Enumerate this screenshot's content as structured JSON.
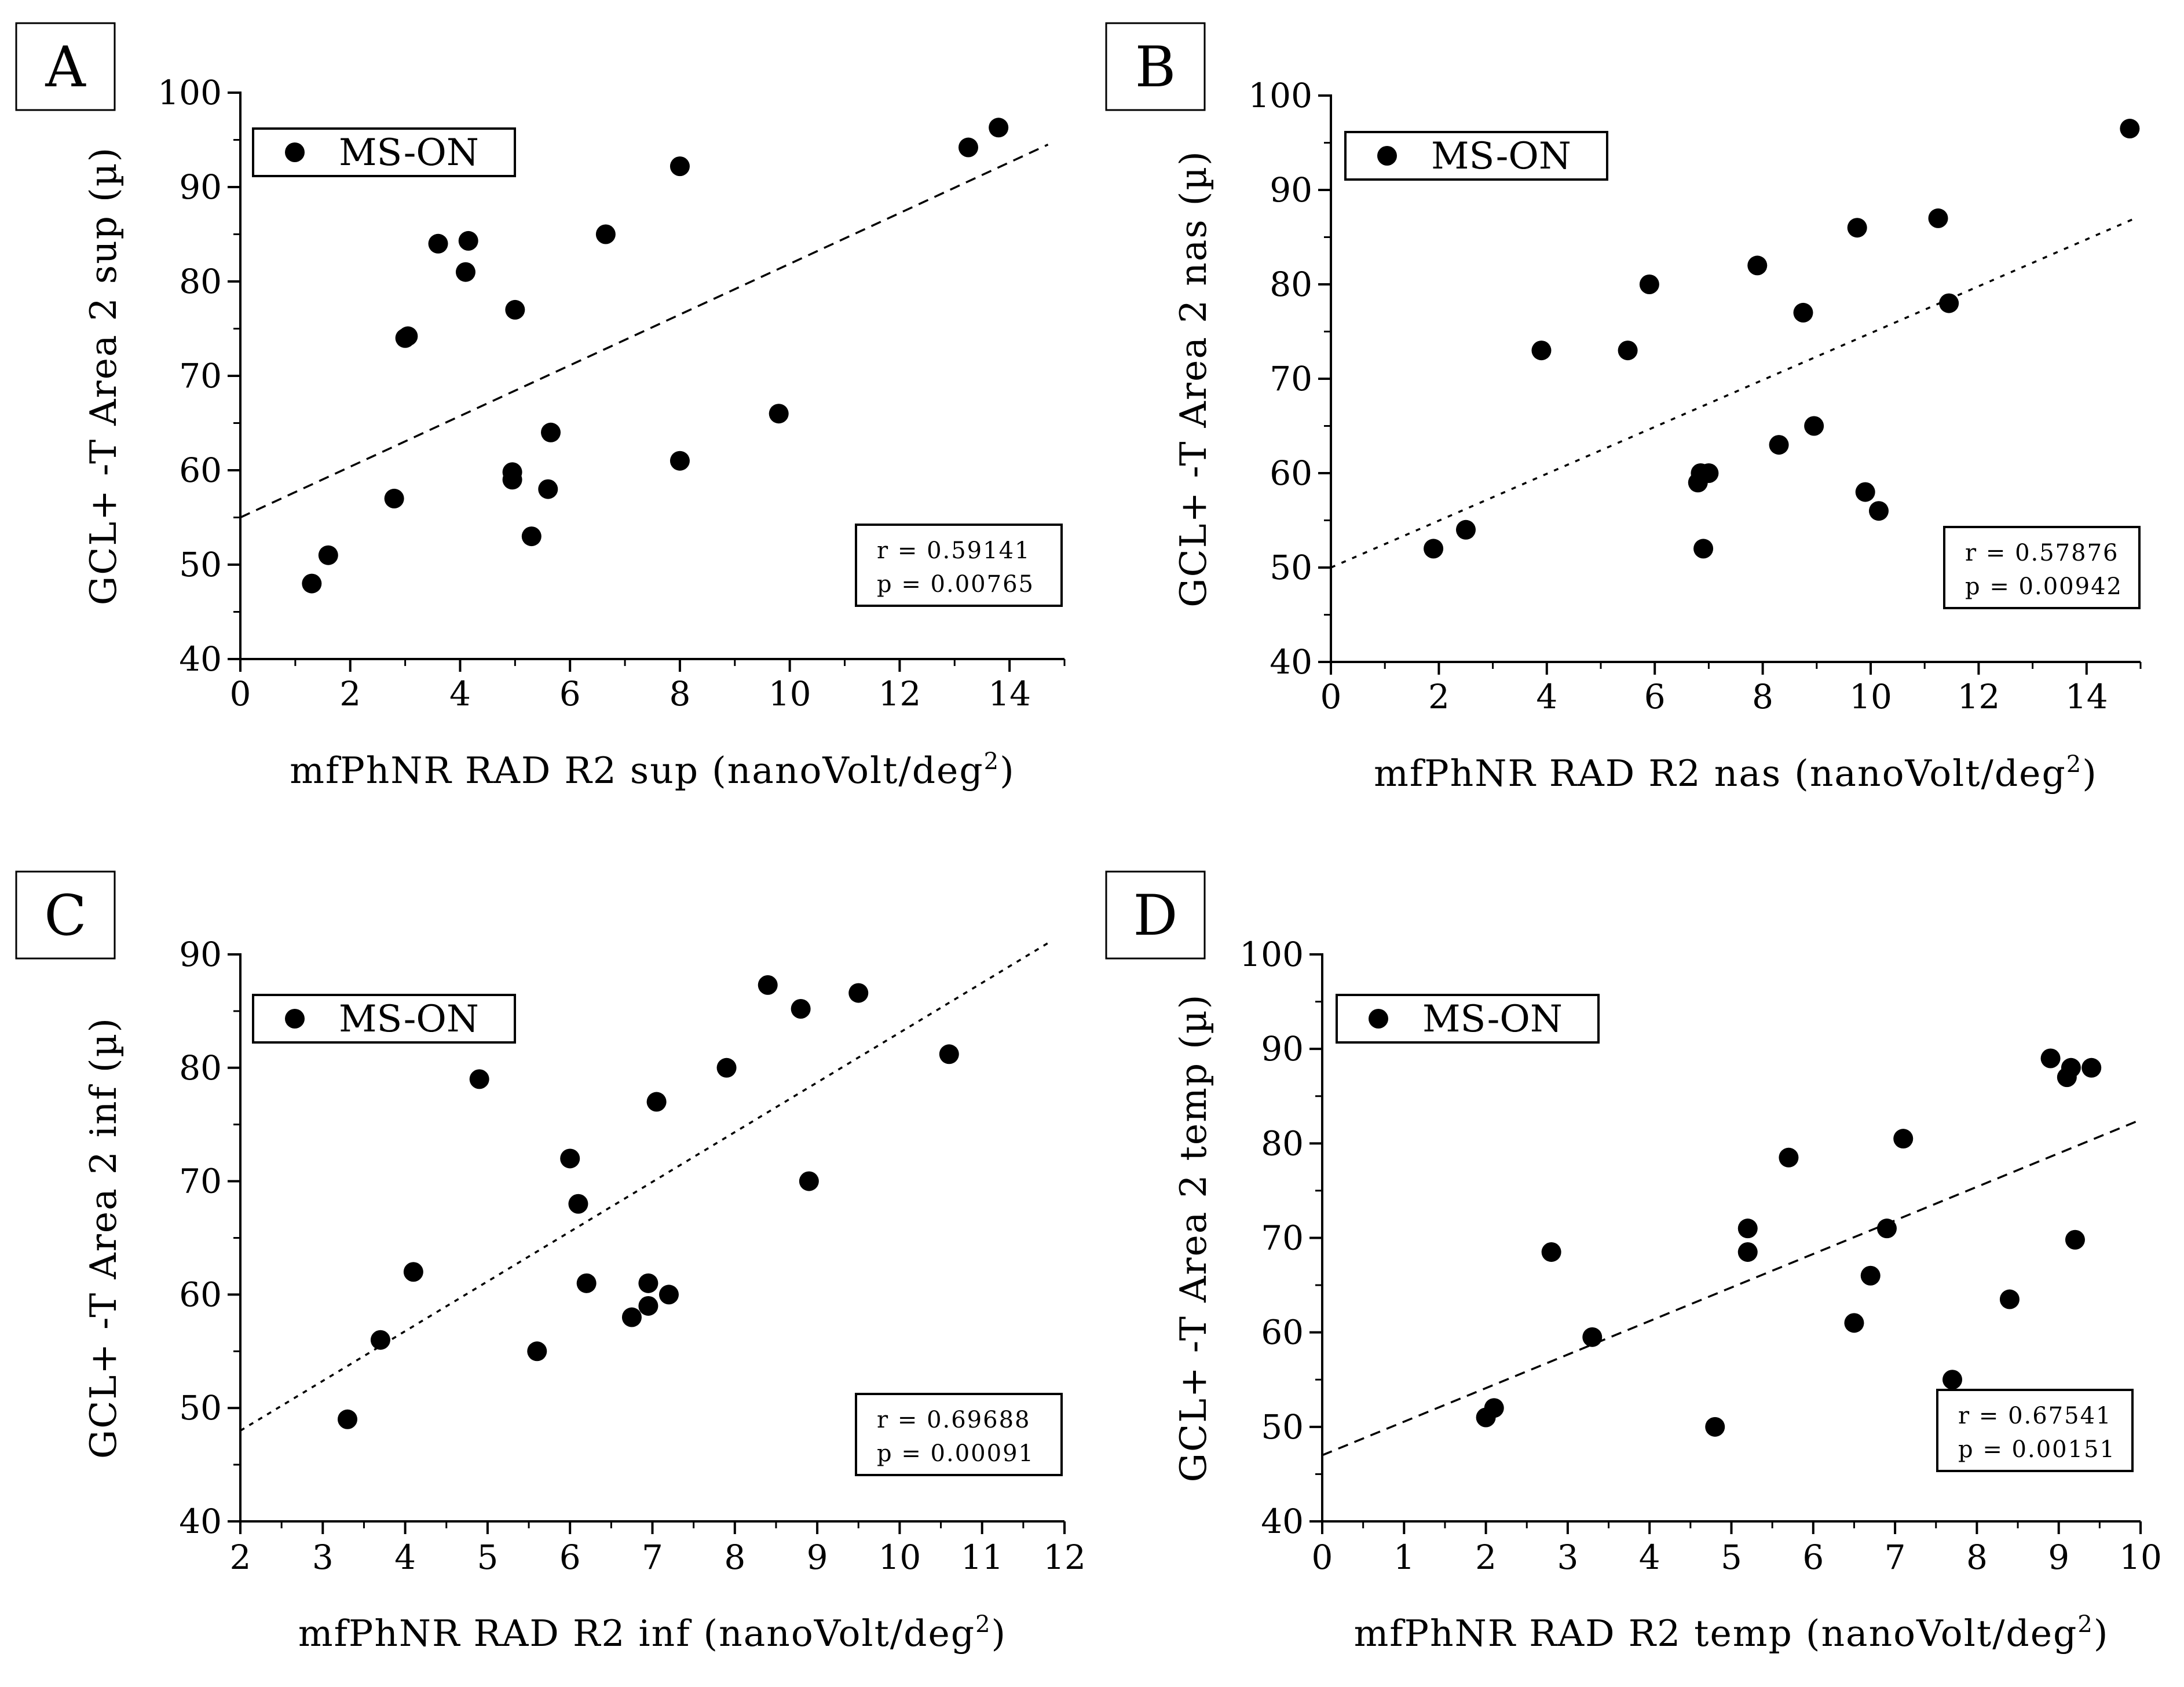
{
  "chart_data": [
    {
      "panel": "A",
      "type": "scatter",
      "legend": "MS-ON",
      "xlabel": "mfPhNR RAD R2 sup (nanoVolt/deg",
      "xlabel_sup": "2",
      "xlabel_end": ")",
      "ylabel": "GCL+ -T Area 2 sup (µ)",
      "xlim": [
        0,
        15
      ],
      "ylim": [
        40,
        100
      ],
      "xticks": [
        0,
        2,
        4,
        6,
        8,
        10,
        12,
        14
      ],
      "yticks": [
        40,
        50,
        60,
        70,
        80,
        90,
        100
      ],
      "r_text": "r = 0.59141",
      "p_text": "p = 0.00765",
      "fit": {
        "x": [
          0,
          14.7
        ],
        "y": [
          55,
          94.5
        ]
      },
      "points": [
        [
          1.3,
          48
        ],
        [
          1.6,
          51
        ],
        [
          2.8,
          57
        ],
        [
          3.0,
          74
        ],
        [
          3.05,
          74.2
        ],
        [
          3.6,
          84
        ],
        [
          4.1,
          81
        ],
        [
          4.15,
          84.3
        ],
        [
          4.95,
          59.8
        ],
        [
          4.95,
          59
        ],
        [
          5.0,
          77
        ],
        [
          5.3,
          53
        ],
        [
          5.6,
          58
        ],
        [
          5.65,
          64
        ],
        [
          6.65,
          85
        ],
        [
          8.0,
          61
        ],
        [
          8.0,
          92.2
        ],
        [
          9.8,
          66
        ],
        [
          13.25,
          94.2
        ],
        [
          13.8,
          96.3
        ]
      ]
    },
    {
      "panel": "B",
      "type": "scatter",
      "legend": "MS-ON",
      "xlabel": "mfPhNR RAD R2 nas (nanoVolt/deg",
      "xlabel_sup": "2",
      "xlabel_end": ")",
      "ylabel": "GCL+ -T Area 2 nas (µ)",
      "xlim": [
        0,
        15
      ],
      "ylim": [
        40,
        100
      ],
      "xticks": [
        0,
        2,
        4,
        6,
        8,
        10,
        12,
        14
      ],
      "yticks": [
        40,
        50,
        60,
        70,
        80,
        90,
        100
      ],
      "r_text": "r = 0.57876",
      "p_text": "p = 0.00942",
      "fit": {
        "x": [
          0,
          14.9
        ],
        "y": [
          50,
          87
        ]
      },
      "points": [
        [
          1.9,
          52
        ],
        [
          2.5,
          54
        ],
        [
          3.9,
          73
        ],
        [
          5.5,
          73
        ],
        [
          5.9,
          80
        ],
        [
          6.8,
          59
        ],
        [
          6.85,
          60
        ],
        [
          6.9,
          52
        ],
        [
          7.0,
          60
        ],
        [
          7.9,
          82
        ],
        [
          8.3,
          63
        ],
        [
          8.75,
          77
        ],
        [
          8.95,
          65
        ],
        [
          9.75,
          86
        ],
        [
          9.9,
          58
        ],
        [
          10.15,
          56
        ],
        [
          11.25,
          87
        ],
        [
          11.45,
          78
        ],
        [
          14.8,
          96.5
        ]
      ]
    },
    {
      "panel": "C",
      "type": "scatter",
      "legend": "MS-ON",
      "xlabel": "mfPhNR RAD R2 inf (nanoVolt/deg",
      "xlabel_sup": "2",
      "xlabel_end": ")",
      "ylabel": "GCL+ -T Area 2 inf (µ)",
      "xlim": [
        2,
        12
      ],
      "ylim": [
        40,
        90
      ],
      "xticks": [
        2,
        3,
        4,
        5,
        6,
        7,
        8,
        9,
        10,
        11,
        12
      ],
      "yticks": [
        40,
        50,
        60,
        70,
        80,
        90
      ],
      "r_text": "r = 0.69688",
      "p_text": "p = 0.00091",
      "fit": {
        "x": [
          2,
          11.8
        ],
        "y": [
          48,
          91
        ]
      },
      "points": [
        [
          3.3,
          49
        ],
        [
          3.7,
          56
        ],
        [
          4.1,
          62
        ],
        [
          4.9,
          79
        ],
        [
          5.6,
          55
        ],
        [
          6.0,
          72
        ],
        [
          6.1,
          68
        ],
        [
          6.2,
          61
        ],
        [
          6.75,
          58
        ],
        [
          6.95,
          61
        ],
        [
          6.95,
          59
        ],
        [
          7.05,
          77
        ],
        [
          7.2,
          60
        ],
        [
          7.9,
          80
        ],
        [
          8.4,
          87.3
        ],
        [
          8.8,
          85.2
        ],
        [
          8.9,
          70
        ],
        [
          9.5,
          86.6
        ],
        [
          10.6,
          81.2
        ]
      ]
    },
    {
      "panel": "D",
      "type": "scatter",
      "legend": "MS-ON",
      "xlabel": "mfPhNR RAD R2 temp (nanoVolt/deg",
      "xlabel_sup": "2",
      "xlabel_end": ")",
      "ylabel": "GCL+ -T Area 2 temp (µ)",
      "xlim": [
        0,
        10
      ],
      "ylim": [
        40,
        100
      ],
      "xticks": [
        0,
        1,
        2,
        3,
        4,
        5,
        6,
        7,
        8,
        9,
        10
      ],
      "yticks": [
        40,
        50,
        60,
        70,
        80,
        90,
        100
      ],
      "r_text": "r = 0.67541",
      "p_text": "p = 0.00151",
      "fit": {
        "x": [
          0,
          10
        ],
        "y": [
          47,
          82.5
        ]
      },
      "points": [
        [
          2.0,
          51
        ],
        [
          2.1,
          52
        ],
        [
          2.8,
          68.5
        ],
        [
          3.3,
          59.5
        ],
        [
          4.8,
          50
        ],
        [
          5.2,
          71
        ],
        [
          5.2,
          68.5
        ],
        [
          5.7,
          78.5
        ],
        [
          6.5,
          61
        ],
        [
          6.7,
          66
        ],
        [
          6.9,
          71
        ],
        [
          7.1,
          80.5
        ],
        [
          7.7,
          55
        ],
        [
          8.4,
          63.5
        ],
        [
          8.9,
          89
        ],
        [
          9.1,
          87
        ],
        [
          9.15,
          88
        ],
        [
          9.2,
          69.8
        ],
        [
          9.4,
          88
        ]
      ]
    }
  ]
}
